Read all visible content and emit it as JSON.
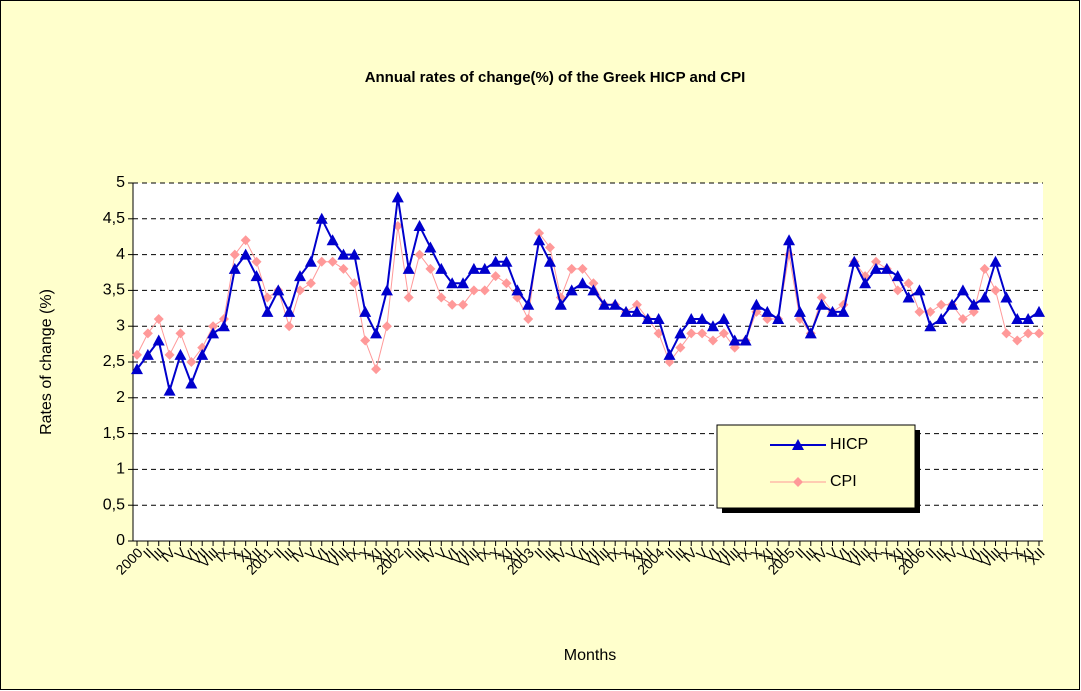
{
  "chart_data": {
    "type": "line",
    "title": "Annual rates of change(%) of the  Greek HICP and  CPI",
    "x_label": "Months",
    "y_label": "Rates of change (%)",
    "categories": [
      "2000",
      "II",
      "III",
      "IV",
      "V",
      "VI",
      "VII",
      "VIII",
      "IX",
      "X",
      "XI",
      "XII",
      "2001",
      "II",
      "III",
      "IV",
      "V",
      "VI",
      "VII",
      "VIII",
      "IX",
      "X",
      "XI",
      "XII",
      "2002",
      "II",
      "III",
      "IV",
      "V",
      "VI",
      "VII",
      "VIII",
      "IX",
      "X",
      "XI",
      "XII",
      "2003",
      "II",
      "III",
      "IV",
      "V",
      "VI",
      "VII",
      "VIII",
      "IX",
      "X",
      "XI",
      "XII",
      "2004",
      "II",
      "III",
      "IV",
      "V",
      "VI",
      "VII",
      "VIII",
      "IX",
      "X",
      "XI",
      "XII",
      "2005",
      "II",
      "III",
      "IV",
      "V",
      "VI",
      "VII",
      "VIII",
      "IX",
      "X",
      "XI",
      "XII",
      "2006",
      "II",
      "III",
      "IV",
      "V",
      "VI",
      "VII",
      "VIII",
      "IX",
      "X",
      "XI",
      "XII"
    ],
    "series": [
      {
        "name": "HICP",
        "color": "#0000cc",
        "marker": "triangle",
        "values": [
          2.4,
          2.6,
          2.8,
          2.1,
          2.6,
          2.2,
          2.6,
          2.9,
          3.0,
          3.8,
          4.0,
          3.7,
          3.2,
          3.5,
          3.2,
          3.7,
          3.9,
          4.5,
          4.2,
          4.0,
          4.0,
          3.2,
          2.9,
          3.5,
          4.8,
          3.8,
          4.4,
          4.1,
          3.8,
          3.6,
          3.6,
          3.8,
          3.8,
          3.9,
          3.9,
          3.5,
          3.3,
          4.2,
          3.9,
          3.3,
          3.5,
          3.6,
          3.5,
          3.3,
          3.3,
          3.2,
          3.2,
          3.1,
          3.1,
          2.6,
          2.9,
          3.1,
          3.1,
          3.0,
          3.1,
          2.8,
          2.8,
          3.3,
          3.2,
          3.1,
          4.2,
          3.2,
          2.9,
          3.3,
          3.2,
          3.2,
          3.9,
          3.6,
          3.8,
          3.8,
          3.7,
          3.4,
          3.5,
          3.0,
          3.1,
          3.3,
          3.5,
          3.3,
          3.4,
          3.9,
          3.4,
          3.1,
          3.1,
          3.2
        ]
      },
      {
        "name": "CPI",
        "color": "#ff9999",
        "marker": "diamond",
        "values": [
          2.6,
          2.9,
          3.1,
          2.6,
          2.9,
          2.5,
          2.7,
          3.0,
          3.1,
          4.0,
          4.2,
          3.9,
          3.4,
          3.5,
          3.0,
          3.5,
          3.6,
          3.9,
          3.9,
          3.8,
          3.6,
          2.8,
          2.4,
          3.0,
          4.4,
          3.4,
          4.0,
          3.8,
          3.4,
          3.3,
          3.3,
          3.5,
          3.5,
          3.7,
          3.6,
          3.4,
          3.1,
          4.3,
          4.1,
          3.4,
          3.8,
          3.8,
          3.6,
          3.3,
          3.3,
          3.2,
          3.3,
          3.1,
          2.9,
          2.5,
          2.7,
          2.9,
          2.9,
          2.8,
          2.9,
          2.7,
          2.8,
          3.2,
          3.1,
          3.1,
          4.0,
          3.1,
          2.9,
          3.4,
          3.2,
          3.3,
          3.9,
          3.7,
          3.9,
          3.8,
          3.5,
          3.6,
          3.2,
          3.2,
          3.3,
          3.3,
          3.1,
          3.2,
          3.8,
          3.5,
          2.9,
          2.8,
          2.9,
          2.9
        ]
      }
    ],
    "ylim": [
      0,
      5
    ],
    "yticks": [
      0,
      {
        "value": 0.5,
        "label": "0,5"
      },
      1,
      {
        "value": 1.5,
        "label": "1,5"
      },
      2,
      {
        "value": 2.5,
        "label": "2,5"
      },
      3,
      {
        "value": 3.5,
        "label": "3,5"
      },
      4,
      {
        "value": 4.5,
        "label": "4,5"
      },
      5
    ],
    "grid": true,
    "legend_position": "lower-right"
  }
}
